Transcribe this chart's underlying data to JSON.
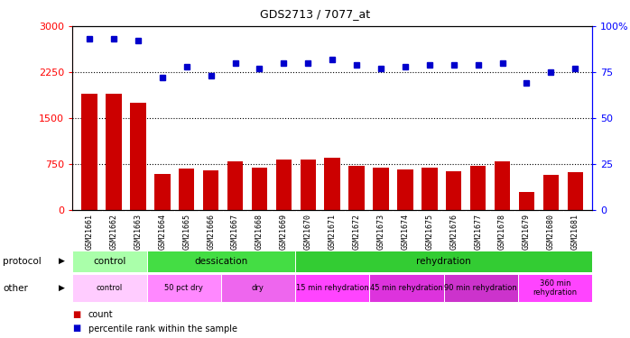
{
  "title": "GDS2713 / 7077_at",
  "samples": [
    "GSM21661",
    "GSM21662",
    "GSM21663",
    "GSM21664",
    "GSM21665",
    "GSM21666",
    "GSM21667",
    "GSM21668",
    "GSM21669",
    "GSM21670",
    "GSM21671",
    "GSM21672",
    "GSM21673",
    "GSM21674",
    "GSM21675",
    "GSM21676",
    "GSM21677",
    "GSM21678",
    "GSM21679",
    "GSM21680",
    "GSM21681"
  ],
  "bar_values": [
    1900,
    1900,
    1750,
    590,
    680,
    650,
    800,
    700,
    820,
    820,
    850,
    720,
    690,
    670,
    700,
    640,
    720,
    800,
    290,
    570,
    620
  ],
  "percentile_values": [
    93,
    93,
    92,
    72,
    78,
    73,
    80,
    77,
    80,
    80,
    82,
    79,
    77,
    78,
    79,
    79,
    79,
    80,
    69,
    75,
    77
  ],
  "bar_color": "#cc0000",
  "dot_color": "#0000cc",
  "ylim_left": [
    0,
    3000
  ],
  "ylim_right": [
    0,
    100
  ],
  "yticks_left": [
    0,
    750,
    1500,
    2250,
    3000
  ],
  "yticks_right": [
    0,
    25,
    50,
    75,
    100
  ],
  "grid_values": [
    750,
    1500,
    2250
  ],
  "proto_data": [
    {
      "label": "control",
      "start": 0,
      "end": 3,
      "color": "#aaffaa"
    },
    {
      "label": "dessication",
      "start": 3,
      "end": 9,
      "color": "#44dd44"
    },
    {
      "label": "rehydration",
      "start": 9,
      "end": 21,
      "color": "#33cc33"
    }
  ],
  "other_data": [
    {
      "label": "control",
      "start": 0,
      "end": 3,
      "color": "#ffccff"
    },
    {
      "label": "50 pct dry",
      "start": 3,
      "end": 6,
      "color": "#ff88ff"
    },
    {
      "label": "dry",
      "start": 6,
      "end": 9,
      "color": "#ee66ee"
    },
    {
      "label": "15 min rehydration",
      "start": 9,
      "end": 12,
      "color": "#ff44ff"
    },
    {
      "label": "45 min rehydration",
      "start": 12,
      "end": 15,
      "color": "#dd33dd"
    },
    {
      "label": "90 min rehydration",
      "start": 15,
      "end": 18,
      "color": "#cc33cc"
    },
    {
      "label": "360 min\nrehydration",
      "start": 18,
      "end": 21,
      "color": "#ff44ff"
    }
  ]
}
